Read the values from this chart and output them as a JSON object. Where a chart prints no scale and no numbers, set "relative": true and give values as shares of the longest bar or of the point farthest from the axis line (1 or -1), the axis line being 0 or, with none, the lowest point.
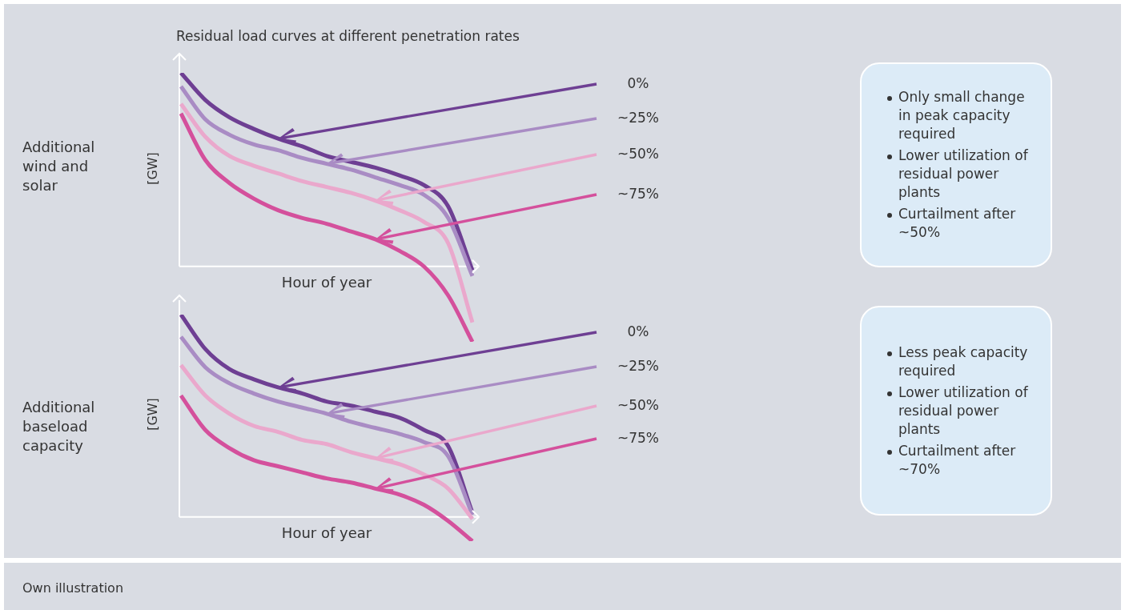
{
  "chart_data": [
    {
      "type": "line",
      "title": "Residual load curves at different penetration rates",
      "subtitle": "Additional wind and solar",
      "xlabel": "Hour of year",
      "ylabel": "[GW]",
      "relative": true,
      "categories": [
        null,
        null,
        null,
        null,
        null,
        null,
        null,
        null,
        null,
        null,
        null,
        null,
        null
      ],
      "series": [
        {
          "name": "0%",
          "color": "#6e3f93",
          "values": [
            1.0,
            0.86,
            0.77,
            0.71,
            0.66,
            0.62,
            0.57,
            0.54,
            0.51,
            0.47,
            0.42,
            0.31,
            -0.02
          ]
        },
        {
          "name": "~25%",
          "color": "#a98cc4",
          "values": [
            0.93,
            0.76,
            0.68,
            0.63,
            0.6,
            0.56,
            0.53,
            0.5,
            0.46,
            0.42,
            0.37,
            0.25,
            -0.05
          ]
        },
        {
          "name": "~50%",
          "color": "#eaa8cc",
          "values": [
            0.84,
            0.67,
            0.57,
            0.52,
            0.48,
            0.44,
            0.41,
            0.38,
            0.34,
            0.29,
            0.23,
            0.12,
            -0.29
          ]
        },
        {
          "name": "~75%",
          "color": "#d4509c",
          "values": [
            0.79,
            0.55,
            0.43,
            0.35,
            0.29,
            0.25,
            0.22,
            0.18,
            0.14,
            0.08,
            0.0,
            -0.15,
            -0.39
          ]
        }
      ]
    },
    {
      "type": "other",
      "annotations": [
        "Only small change in peak capacity required",
        "Lower utilization of residual power plants",
        "Curtailment after ~50%"
      ]
    },
    {
      "type": "line",
      "subtitle": "Additional baseload capacity",
      "xlabel": "Hour of year",
      "ylabel": "[GW]",
      "relative": true,
      "categories": [
        null,
        null,
        null,
        null,
        null,
        null,
        null,
        null,
        null,
        null,
        null,
        null,
        null
      ],
      "series": [
        {
          "name": "0%",
          "color": "#6e3f93",
          "values": [
            1.0,
            0.83,
            0.73,
            0.68,
            0.64,
            0.61,
            0.57,
            0.55,
            0.52,
            0.49,
            0.43,
            0.35,
            0.02
          ]
        },
        {
          "name": "~25%",
          "color": "#a98cc4",
          "values": [
            0.89,
            0.74,
            0.66,
            0.61,
            0.57,
            0.54,
            0.51,
            0.47,
            0.44,
            0.41,
            0.37,
            0.3,
            0.01
          ]
        },
        {
          "name": "~50%",
          "color": "#eaa8cc",
          "values": [
            0.75,
            0.6,
            0.51,
            0.45,
            0.42,
            0.38,
            0.36,
            0.32,
            0.29,
            0.26,
            0.21,
            0.14,
            -0.01
          ]
        },
        {
          "name": "~75%",
          "color": "#d4509c",
          "values": [
            0.6,
            0.43,
            0.34,
            0.28,
            0.25,
            0.22,
            0.19,
            0.17,
            0.14,
            0.11,
            0.06,
            -0.02,
            -0.12
          ]
        }
      ],
      "annotations": [
        "Own illustration"
      ]
    },
    {
      "type": "other",
      "annotations": [
        "Less peak capacity required",
        "Lower utilization of residual power plants",
        "Curtailment after ~70%"
      ]
    }
  ]
}
